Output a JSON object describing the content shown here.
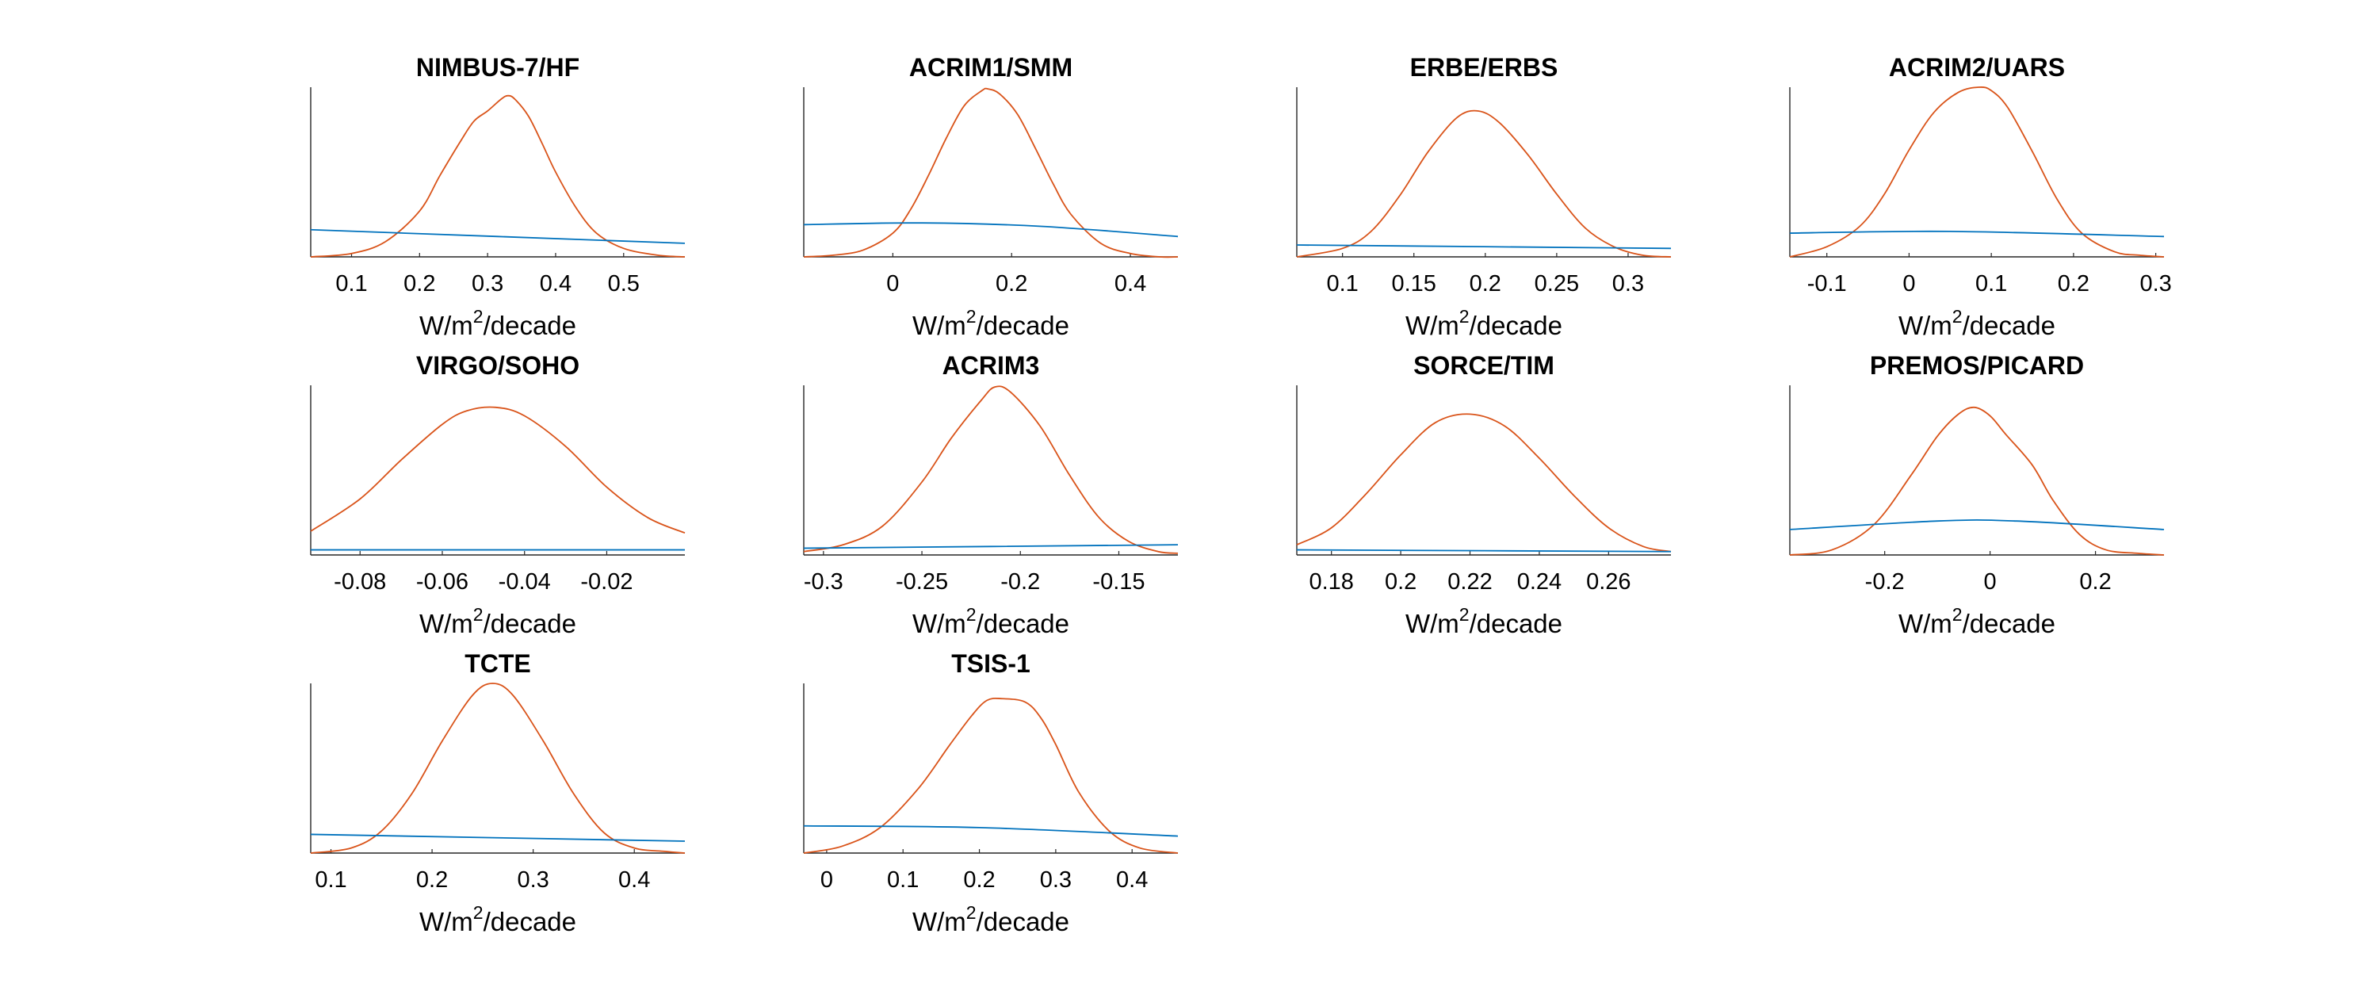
{
  "colors": {
    "prior": "#0072BD",
    "posterior": "#D95319"
  },
  "chart_data": [
    {
      "type": "line",
      "title": "NIMBUS-7/HF",
      "xlabel": [
        "W/m",
        "2",
        "/decade"
      ],
      "xlim": [
        0.04,
        0.59
      ],
      "xticks": [
        0.1,
        0.2,
        0.3,
        0.4,
        0.5
      ],
      "tick_labels": [
        "0.1",
        "0.2",
        "0.3",
        "0.4",
        "0.5"
      ],
      "series": [
        {
          "color": "posterior",
          "x": [
            0.04,
            0.1,
            0.15,
            0.2,
            0.23,
            0.26,
            0.28,
            0.3,
            0.32,
            0.33,
            0.34,
            0.36,
            0.38,
            0.4,
            0.43,
            0.46,
            0.5,
            0.55,
            0.59
          ],
          "y": [
            0.0,
            0.02,
            0.09,
            0.27,
            0.48,
            0.68,
            0.8,
            0.86,
            0.93,
            0.95,
            0.93,
            0.83,
            0.67,
            0.5,
            0.29,
            0.14,
            0.05,
            0.01,
            0.0
          ]
        },
        {
          "color": "prior",
          "x": [
            0.04,
            0.59
          ],
          "y": [
            0.16,
            0.08
          ]
        }
      ]
    },
    {
      "type": "line",
      "title": "ACRIM1/SMM",
      "xlabel": [
        "W/m",
        "2",
        "/decade"
      ],
      "xlim": [
        -0.15,
        0.48
      ],
      "xticks": [
        0,
        0.2,
        0.4
      ],
      "tick_labels": [
        "0",
        "0.2",
        "0.4"
      ],
      "series": [
        {
          "color": "posterior",
          "x": [
            -0.15,
            -0.1,
            -0.05,
            0,
            0.03,
            0.06,
            0.09,
            0.12,
            0.15,
            0.16,
            0.18,
            0.21,
            0.24,
            0.27,
            0.3,
            0.35,
            0.4,
            0.45,
            0.48
          ],
          "y": [
            0.0,
            0.01,
            0.04,
            0.14,
            0.28,
            0.48,
            0.7,
            0.89,
            0.98,
            0.99,
            0.96,
            0.84,
            0.64,
            0.43,
            0.25,
            0.08,
            0.02,
            0.0,
            0.0
          ]
        },
        {
          "color": "prior",
          "x": [
            -0.15,
            0.05,
            0.25,
            0.48
          ],
          "y": [
            0.19,
            0.2,
            0.18,
            0.12
          ]
        }
      ]
    },
    {
      "type": "line",
      "title": "ERBE/ERBS",
      "xlabel": [
        "W/m",
        "2",
        "/decade"
      ],
      "xlim": [
        0.068,
        0.33
      ],
      "xticks": [
        0.1,
        0.15,
        0.2,
        0.25,
        0.3
      ],
      "tick_labels": [
        "0.1",
        "0.15",
        "0.2",
        "0.25",
        "0.3"
      ],
      "series": [
        {
          "color": "posterior",
          "x": [
            0.068,
            0.1,
            0.12,
            0.14,
            0.16,
            0.18,
            0.195,
            0.21,
            0.23,
            0.25,
            0.27,
            0.29,
            0.31,
            0.33
          ],
          "y": [
            0.0,
            0.05,
            0.15,
            0.36,
            0.62,
            0.82,
            0.86,
            0.79,
            0.6,
            0.37,
            0.17,
            0.06,
            0.01,
            0.0
          ]
        },
        {
          "color": "prior",
          "x": [
            0.068,
            0.33
          ],
          "y": [
            0.07,
            0.05
          ]
        }
      ]
    },
    {
      "type": "line",
      "title": "ACRIM2/UARS",
      "xlabel": [
        "W/m",
        "2",
        "/decade"
      ],
      "xlim": [
        -0.145,
        0.31
      ],
      "xticks": [
        -0.1,
        0,
        0.1,
        0.2,
        0.3
      ],
      "tick_labels": [
        "-0.1",
        "0",
        "0.1",
        "0.2",
        "0.3"
      ],
      "series": [
        {
          "color": "posterior",
          "x": [
            -0.145,
            -0.1,
            -0.06,
            -0.03,
            0,
            0.03,
            0.06,
            0.085,
            0.1,
            0.12,
            0.15,
            0.18,
            0.21,
            0.25,
            0.28,
            0.31
          ],
          "y": [
            0.0,
            0.06,
            0.18,
            0.37,
            0.63,
            0.85,
            0.97,
            1.0,
            0.98,
            0.88,
            0.62,
            0.34,
            0.14,
            0.03,
            0.01,
            0.0
          ]
        },
        {
          "color": "prior",
          "x": [
            -0.145,
            0.05,
            0.31
          ],
          "y": [
            0.14,
            0.15,
            0.12
          ]
        }
      ]
    },
    {
      "type": "line",
      "title": "VIRGO/SOHO",
      "xlabel": [
        "W/m",
        "2",
        "/decade"
      ],
      "xlim": [
        -0.092,
        -0.001
      ],
      "xticks": [
        -0.08,
        -0.06,
        -0.04,
        -0.02
      ],
      "tick_labels": [
        "-0.08",
        "-0.06",
        "-0.04",
        "-0.02"
      ],
      "series": [
        {
          "color": "posterior",
          "x": [
            -0.092,
            -0.08,
            -0.07,
            -0.06,
            -0.054,
            -0.047,
            -0.04,
            -0.03,
            -0.02,
            -0.01,
            -0.001
          ],
          "y": [
            0.14,
            0.33,
            0.56,
            0.77,
            0.85,
            0.87,
            0.82,
            0.64,
            0.4,
            0.22,
            0.13
          ]
        },
        {
          "color": "prior",
          "x": [
            -0.092,
            -0.001
          ],
          "y": [
            0.03,
            0.03
          ]
        }
      ]
    },
    {
      "type": "line",
      "title": "ACRIM3",
      "xlabel": [
        "W/m",
        "2",
        "/decade"
      ],
      "xlim": [
        -0.31,
        -0.12
      ],
      "xticks": [
        -0.3,
        -0.25,
        -0.2,
        -0.15
      ],
      "tick_labels": [
        "-0.3",
        "-0.25",
        "-0.2",
        "-0.15"
      ],
      "series": [
        {
          "color": "posterior",
          "x": [
            -0.31,
            -0.29,
            -0.27,
            -0.25,
            -0.235,
            -0.22,
            -0.213,
            -0.205,
            -0.19,
            -0.175,
            -0.16,
            -0.145,
            -0.13,
            -0.12
          ],
          "y": [
            0.02,
            0.06,
            0.17,
            0.43,
            0.69,
            0.91,
            0.99,
            0.96,
            0.76,
            0.47,
            0.22,
            0.08,
            0.02,
            0.01
          ]
        },
        {
          "color": "prior",
          "x": [
            -0.31,
            -0.12
          ],
          "y": [
            0.04,
            0.06
          ]
        }
      ]
    },
    {
      "type": "line",
      "title": "SORCE/TIM",
      "xlabel": [
        "W/m",
        "2",
        "/decade"
      ],
      "xlim": [
        0.17,
        0.278
      ],
      "xticks": [
        0.18,
        0.2,
        0.22,
        0.24,
        0.26
      ],
      "tick_labels": [
        "0.18",
        "0.2",
        "0.22",
        "0.24",
        "0.26"
      ],
      "series": [
        {
          "color": "posterior",
          "x": [
            0.17,
            0.18,
            0.19,
            0.2,
            0.21,
            0.22,
            0.23,
            0.24,
            0.25,
            0.26,
            0.27,
            0.278
          ],
          "y": [
            0.06,
            0.16,
            0.36,
            0.59,
            0.78,
            0.83,
            0.76,
            0.57,
            0.35,
            0.16,
            0.05,
            0.02
          ]
        },
        {
          "color": "prior",
          "x": [
            0.17,
            0.278
          ],
          "y": [
            0.03,
            0.02
          ]
        }
      ]
    },
    {
      "type": "line",
      "title": "PREMOS/PICARD",
      "xlabel": [
        "W/m",
        "2",
        "/decade"
      ],
      "xlim": [
        -0.38,
        0.33
      ],
      "xticks": [
        -0.2,
        0,
        0.2
      ],
      "tick_labels": [
        "-0.2",
        "0",
        "0.2"
      ],
      "series": [
        {
          "color": "posterior",
          "x": [
            -0.38,
            -0.3,
            -0.22,
            -0.15,
            -0.1,
            -0.06,
            -0.03,
            0,
            0.03,
            0.08,
            0.12,
            0.17,
            0.22,
            0.28,
            0.33
          ],
          "y": [
            0.0,
            0.03,
            0.18,
            0.47,
            0.7,
            0.83,
            0.87,
            0.82,
            0.71,
            0.53,
            0.32,
            0.12,
            0.03,
            0.01,
            0.0
          ]
        },
        {
          "color": "prior",
          "x": [
            -0.38,
            -0.1,
            0.05,
            0.33
          ],
          "y": [
            0.15,
            0.2,
            0.2,
            0.15
          ]
        }
      ]
    },
    {
      "type": "line",
      "title": "TCTE",
      "xlabel": [
        "W/m",
        "2",
        "/decade"
      ],
      "xlim": [
        0.08,
        0.45
      ],
      "xticks": [
        0.1,
        0.2,
        0.3,
        0.4
      ],
      "tick_labels": [
        "0.1",
        "0.2",
        "0.3",
        "0.4"
      ],
      "series": [
        {
          "color": "posterior",
          "x": [
            0.08,
            0.12,
            0.15,
            0.18,
            0.21,
            0.24,
            0.26,
            0.28,
            0.31,
            0.34,
            0.37,
            0.4,
            0.43,
            0.45
          ],
          "y": [
            0.0,
            0.03,
            0.13,
            0.35,
            0.66,
            0.93,
            1.0,
            0.93,
            0.66,
            0.35,
            0.12,
            0.03,
            0.01,
            0.0
          ]
        },
        {
          "color": "prior",
          "x": [
            0.08,
            0.45
          ],
          "y": [
            0.11,
            0.07
          ]
        }
      ]
    },
    {
      "type": "line",
      "title": "TSIS-1",
      "xlabel": [
        "W/m",
        "2",
        "/decade"
      ],
      "xlim": [
        -0.03,
        0.46
      ],
      "xticks": [
        0,
        0.1,
        0.2,
        0.3,
        0.4
      ],
      "tick_labels": [
        "0",
        "0.1",
        "0.2",
        "0.3",
        "0.4"
      ],
      "series": [
        {
          "color": "posterior",
          "x": [
            -0.03,
            0.02,
            0.07,
            0.12,
            0.16,
            0.19,
            0.21,
            0.23,
            0.26,
            0.28,
            0.3,
            0.33,
            0.37,
            0.41,
            0.46
          ],
          "y": [
            0.0,
            0.04,
            0.15,
            0.38,
            0.63,
            0.81,
            0.9,
            0.91,
            0.89,
            0.8,
            0.64,
            0.36,
            0.13,
            0.03,
            0.0
          ]
        },
        {
          "color": "prior",
          "x": [
            -0.03,
            0.2,
            0.46
          ],
          "y": [
            0.16,
            0.15,
            0.1
          ]
        }
      ]
    }
  ]
}
